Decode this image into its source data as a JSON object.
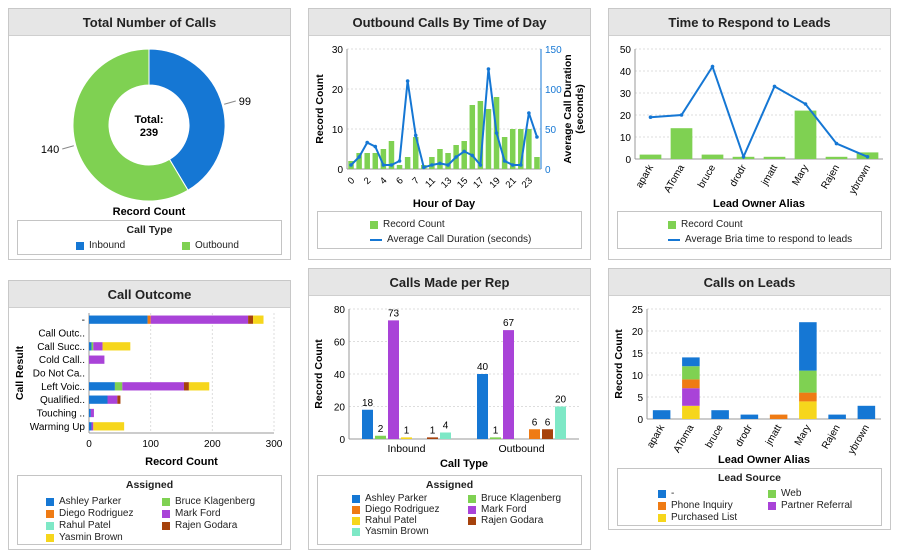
{
  "colors": {
    "inbound": "#1577d4",
    "outbound": "#7fd152",
    "blue": "#1577d4",
    "ashley": "#1577d4",
    "bruce": "#7fd152",
    "diego": "#ef7b14",
    "mark": "#a943d8",
    "rahul": "#7ee8c6",
    "rajen": "#a6420c",
    "yasmin": "#f6d61c",
    "dash": "#1577d4",
    "web": "#7fd152",
    "phone": "#ef7b14",
    "partner": "#a943d8",
    "purchased": "#f6d61c"
  },
  "panels": {
    "total_calls": {
      "title": "Total Number of Calls",
      "center_label": "Total:",
      "center_value": "239",
      "xlabel": "Record Count",
      "legend_title": "Call Type",
      "chart_data": {
        "type": "pie",
        "slices": [
          {
            "name": "Inbound",
            "value": 99,
            "label": "99"
          },
          {
            "name": "Outbound",
            "value": 140,
            "label": "140"
          }
        ]
      }
    },
    "outbound_time": {
      "title": "Outbound Calls By Time of Day",
      "legend": [
        "Record Count",
        "Average Call Duration (seconds)"
      ],
      "chart_data": {
        "type": "bar",
        "xlabel": "Hour of Day",
        "ylabel": "Record Count",
        "y2label": "Average Call Duration (seconds)",
        "ylim": [
          0,
          30
        ],
        "y2lim": [
          0,
          150
        ],
        "yticks": [
          "0",
          "10",
          "20",
          "30"
        ],
        "y2ticks": [
          "0",
          "50",
          "100",
          "150"
        ],
        "xtick_labels": [
          "0",
          "2",
          "4",
          "6",
          "7",
          "11",
          "13",
          "15",
          "17",
          "19",
          "21",
          "23"
        ],
        "x": [
          0,
          1,
          2,
          3,
          4,
          5,
          6,
          7,
          8,
          9,
          10,
          11,
          12,
          13,
          14,
          15,
          16,
          17,
          18,
          19,
          20,
          21,
          22,
          23
        ],
        "bars": [
          2,
          4,
          4,
          4,
          5,
          7,
          1,
          3,
          8,
          1,
          3,
          5,
          4,
          6,
          7,
          16,
          17,
          15,
          18,
          8,
          10,
          10,
          10,
          3
        ],
        "line": [
          5,
          15,
          33,
          28,
          5,
          5,
          10,
          110,
          42,
          2,
          5,
          7,
          5,
          15,
          22,
          17,
          5,
          125,
          45,
          10,
          5,
          5,
          70,
          40
        ]
      }
    },
    "time_to_respond": {
      "title": "Time to Respond to Leads",
      "legend": [
        "Record Count",
        "Average Bria time to respond to leads"
      ],
      "chart_data": {
        "type": "bar",
        "xlabel": "Lead Owner Alias",
        "ylim": [
          0,
          50
        ],
        "yticks": [
          "0",
          "10",
          "20",
          "30",
          "40",
          "50"
        ],
        "categories": [
          "apark",
          "AToma",
          "bruce",
          "drodr",
          "jmatt",
          "Mary",
          "Rajen",
          "ybrown"
        ],
        "bars": [
          2,
          14,
          2,
          1,
          1,
          22,
          1,
          3
        ],
        "line": [
          19,
          20,
          42,
          1,
          33,
          25,
          7,
          1
        ]
      }
    },
    "call_outcome": {
      "title": "Call Outcome",
      "legend_title": "Assigned",
      "legend": [
        "Ashley Parker",
        "Bruce Klagenberg",
        "Diego Rodriguez",
        "Mark Ford",
        "Rahul Patel",
        "Rajen Godara",
        "Yasmin Brown"
      ],
      "chart_data": {
        "type": "bar",
        "orientation": "horizontal",
        "stacked": true,
        "xlabel": "Record Count",
        "ylabel": "Call Result",
        "xlim": [
          0,
          300
        ],
        "xticks": [
          "0",
          "100",
          "200",
          "300"
        ],
        "categories": [
          "-",
          "Call Outc..",
          "Call Succ..",
          "Cold Call..",
          "Do Not Ca..",
          "Left Voic..",
          "Qualified..",
          "Touching ..",
          "Warming Up"
        ],
        "series": [
          {
            "name": "Ashley Parker",
            "values": [
              95,
              0,
              4,
              0,
              0,
              42,
              30,
              3,
              4
            ]
          },
          {
            "name": "Bruce Klagenberg",
            "values": [
              0,
              0,
              3,
              0,
              0,
              12,
              0,
              0,
              0
            ]
          },
          {
            "name": "Diego Rodriguez",
            "values": [
              5,
              0,
              0,
              0,
              0,
              0,
              0,
              0,
              0
            ]
          },
          {
            "name": "Mark Ford",
            "values": [
              158,
              0,
              15,
              25,
              0,
              100,
              16,
              5,
              3
            ]
          },
          {
            "name": "Rahul Patel",
            "values": [
              0,
              0,
              0,
              0,
              0,
              0,
              0,
              0,
              0
            ]
          },
          {
            "name": "Rajen Godara",
            "values": [
              8,
              0,
              0,
              0,
              0,
              8,
              5,
              0,
              0
            ]
          },
          {
            "name": "Yasmin Brown",
            "values": [
              17,
              0,
              45,
              0,
              0,
              33,
              0,
              0,
              50
            ]
          }
        ]
      }
    },
    "calls_per_rep": {
      "title": "Calls Made per Rep",
      "legend_title": "Assigned",
      "legend": [
        "Ashley Parker",
        "Bruce Klagenberg",
        "Diego Rodriguez",
        "Mark Ford",
        "Rahul Patel",
        "Rajen Godara",
        "Yasmin Brown"
      ],
      "chart_data": {
        "type": "bar",
        "xlabel": "Call Type",
        "ylabel": "Record Count",
        "ylim": [
          0,
          80
        ],
        "yticks": [
          "0",
          "20",
          "40",
          "60",
          "80"
        ],
        "categories": [
          "Inbound",
          "Outbound"
        ],
        "series": [
          {
            "name": "Ashley Parker",
            "values": [
              18,
              40
            ],
            "labels": [
              "18",
              "40"
            ]
          },
          {
            "name": "Bruce Klagenberg",
            "values": [
              2,
              1
            ],
            "labels": [
              "2",
              "1"
            ]
          },
          {
            "name": "Mark Ford",
            "values": [
              73,
              67
            ],
            "labels": [
              "73",
              "67"
            ]
          },
          {
            "name": "Yasmin Brown",
            "values": [
              1,
              0
            ],
            "labels": [
              "1",
              ""
            ]
          },
          {
            "name": "Diego Rodriguez",
            "values": [
              0,
              6
            ],
            "labels": [
              "",
              "6"
            ]
          },
          {
            "name": "Rajen Godara",
            "values": [
              1,
              6
            ],
            "labels": [
              "1",
              "6"
            ]
          },
          {
            "name": "Rahul Patel",
            "values": [
              4,
              20
            ],
            "labels": [
              "4",
              "20"
            ]
          }
        ]
      }
    },
    "calls_on_leads": {
      "title": "Calls on Leads",
      "legend_title": "Lead Source",
      "legend": [
        "-",
        "Web",
        "Phone Inquiry",
        "Partner Referral",
        "Purchased List"
      ],
      "chart_data": {
        "type": "bar",
        "stacked": true,
        "xlabel": "Lead Owner Alias",
        "ylabel": "Record Count",
        "ylim": [
          0,
          25
        ],
        "yticks": [
          "0",
          "5",
          "10",
          "15",
          "20",
          "25"
        ],
        "categories": [
          "apark",
          "AToma",
          "bruce",
          "drodr",
          "jmatt",
          "Mary",
          "Rajen",
          "ybrown"
        ],
        "series": [
          {
            "name": "Purchased List",
            "values": [
              0,
              3,
              0,
              0,
              0,
              4,
              0,
              0
            ]
          },
          {
            "name": "Partner Referral",
            "values": [
              0,
              4,
              0,
              0,
              0,
              0,
              0,
              0
            ]
          },
          {
            "name": "Phone Inquiry",
            "values": [
              0,
              2,
              0,
              0,
              1,
              2,
              0,
              0
            ]
          },
          {
            "name": "Web",
            "values": [
              0,
              3,
              0,
              0,
              0,
              5,
              0,
              0
            ]
          },
          {
            "name": "-",
            "values": [
              2,
              2,
              2,
              1,
              0,
              11,
              1,
              3
            ]
          }
        ]
      }
    }
  }
}
